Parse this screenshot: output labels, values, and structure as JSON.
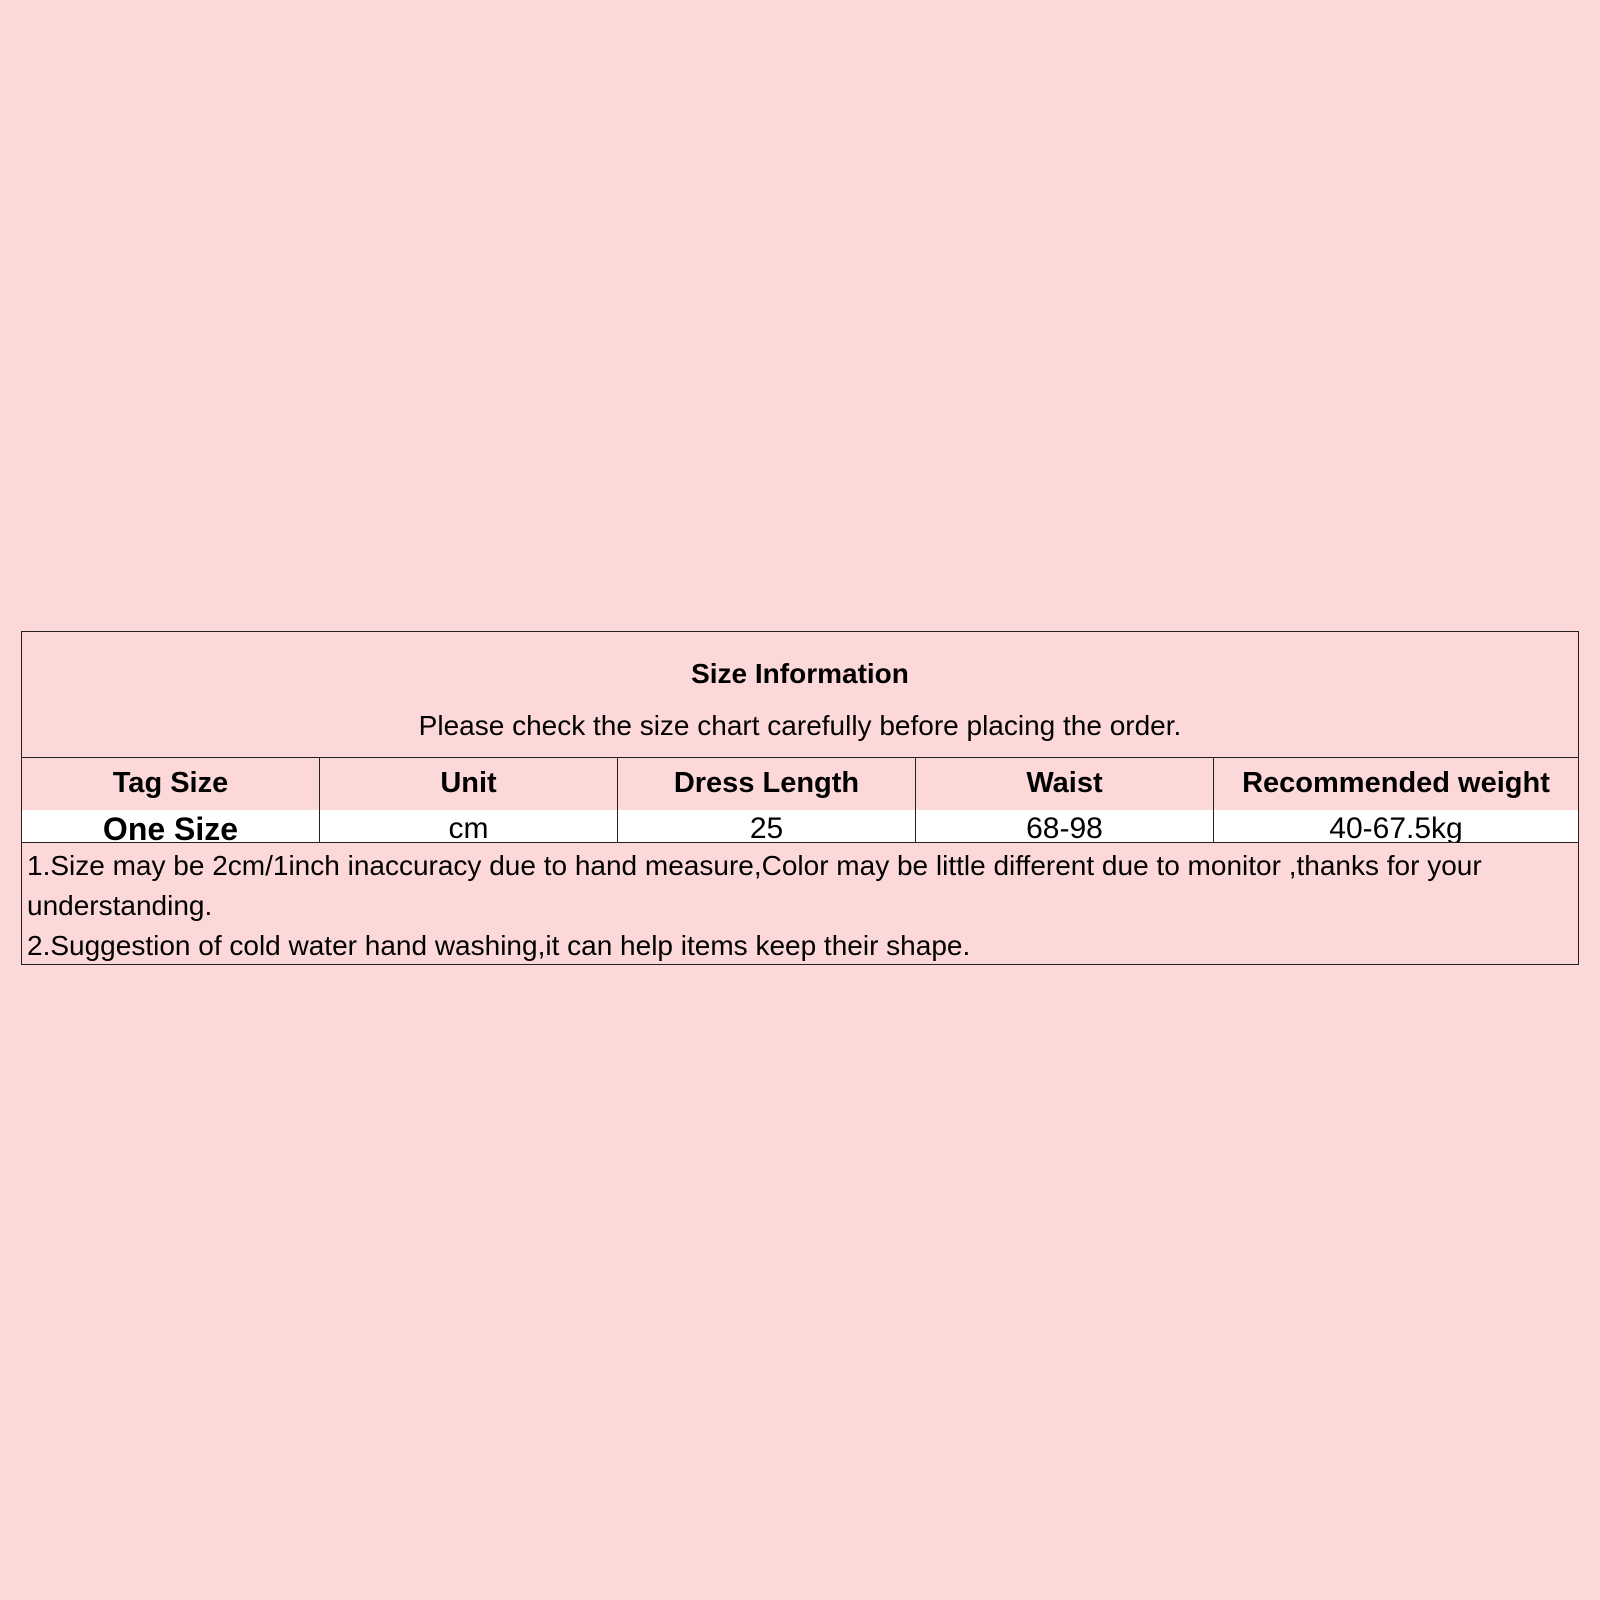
{
  "title": "Size Information",
  "subtitle": "Please check the size chart carefully before placing the order.",
  "table": {
    "headers": [
      "Tag Size",
      "Unit",
      "Dress Length",
      "Waist",
      "Recommended weight"
    ],
    "rows": [
      [
        "One Size",
        "cm",
        "25",
        "68-98",
        "40-67.5kg"
      ]
    ]
  },
  "notes": [
    "1.Size may be 2cm/1inch inaccuracy due to hand measure,Color may be little different due to monitor ,thanks for your understanding.",
    "2.Suggestion of cold water hand washing,it can help items keep their shape."
  ],
  "colors": {
    "background": "#fcd9d8",
    "data_row": "#ffffff",
    "border": "#222222"
  }
}
